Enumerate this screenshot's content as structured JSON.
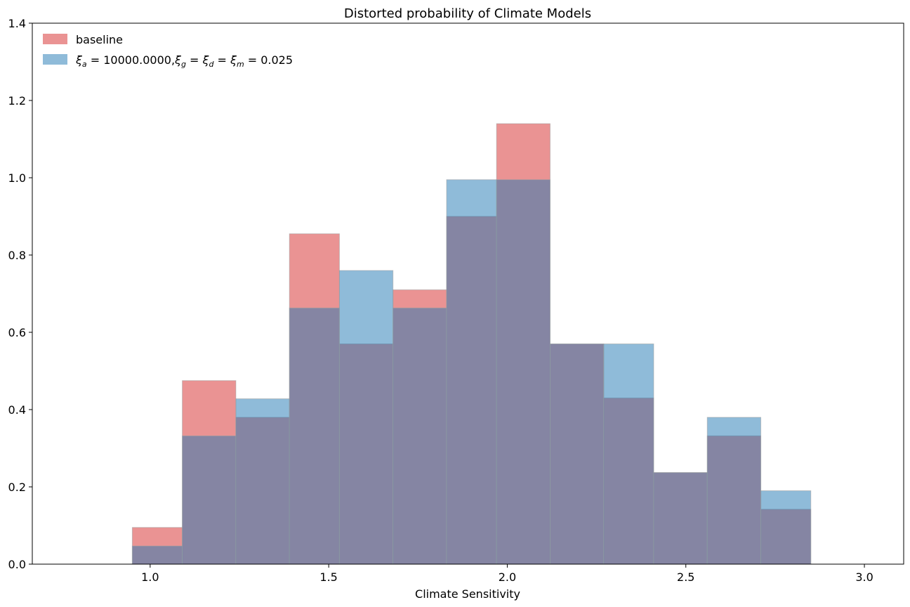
{
  "chart_data": {
    "type": "bar",
    "title": "Distorted probability of Climate Models",
    "xlabel": "Climate Sensitivity",
    "ylabel": "",
    "xlim": [
      0.67,
      3.11
    ],
    "ylim": [
      0,
      1.4
    ],
    "xticks": [
      "1.0",
      "1.5",
      "2.0",
      "2.5",
      "3.0"
    ],
    "yticks": [
      "0.0",
      "0.2",
      "0.4",
      "0.6",
      "0.8",
      "1.0",
      "1.2",
      "1.4"
    ],
    "grid": false,
    "legend_position": "top-left",
    "bin_edges": [
      0.8,
      0.95,
      1.09,
      1.24,
      1.39,
      1.53,
      1.68,
      1.83,
      1.97,
      2.12,
      2.27,
      2.41,
      2.56,
      2.71,
      2.85,
      3.0
    ],
    "series": [
      {
        "name": "baseline",
        "color": "#d62728",
        "values": [
          0.0,
          0.095,
          0.475,
          0.38,
          0.855,
          0.57,
          0.71,
          0.9,
          1.14,
          0.57,
          0.43,
          0.237,
          0.332,
          0.142,
          0.0
        ]
      },
      {
        "name": "ξ_a = 10000.0000, ξ_g = ξ_d = ξ_m = 0.025",
        "color": "#1f77b4",
        "values": [
          0.0,
          0.047,
          0.332,
          0.428,
          0.663,
          0.76,
          0.663,
          0.995,
          0.995,
          0.57,
          0.57,
          0.237,
          0.38,
          0.19,
          0.0
        ]
      }
    ]
  }
}
